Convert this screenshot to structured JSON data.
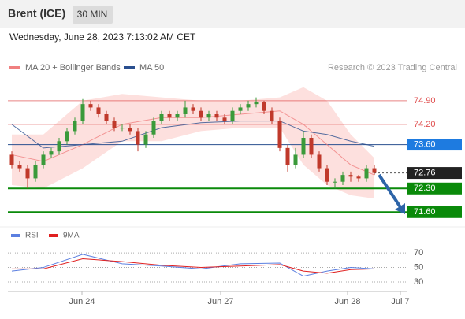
{
  "header": {
    "title": "Brent (ICE)",
    "interval": "30 MIN",
    "timestamp": "Wednesday, June 28, 2023 7:13:02 AM CET"
  },
  "chart_data": {
    "type": "candlestick",
    "legend": [
      {
        "name": "MA 20 + Bollinger Bands",
        "color": "#f08080"
      },
      {
        "name": "MA 50",
        "color": "#2a4f8f"
      }
    ],
    "credit": "Research © 2023 Trading Central",
    "xlim": [
      0,
      50
    ],
    "xticks": [
      {
        "value": 9.4,
        "label": "Jun 24"
      },
      {
        "value": 27,
        "label": "Jun 27"
      },
      {
        "value": 43.1,
        "label": "Jun 28"
      },
      {
        "value": 49.8,
        "label": "Jul 7"
      }
    ],
    "ylim": [
      71.28,
      75.55
    ],
    "up_color": "#3a9a3a",
    "down_color": "#c0392b",
    "open": [
      73.3,
      73.0,
      72.9,
      72.6,
      73.0,
      73.3,
      73.4,
      73.7,
      74.0,
      74.3,
      74.8,
      74.7,
      74.5,
      74.3,
      74.1,
      74.1,
      74.0,
      73.6,
      73.9,
      74.3,
      74.5,
      74.4,
      74.5,
      74.7,
      74.6,
      74.4,
      74.5,
      74.4,
      74.3,
      74.6,
      74.7,
      74.8,
      74.85,
      74.6,
      74.3,
      73.5,
      73.0,
      73.3,
      73.8,
      73.3,
      72.9,
      72.5,
      72.5,
      72.7,
      72.65,
      72.6,
      72.9
    ],
    "high": [
      73.4,
      73.1,
      73.0,
      73.1,
      73.4,
      73.5,
      73.8,
      74.1,
      74.4,
      74.95,
      74.9,
      74.8,
      74.6,
      74.4,
      74.2,
      74.2,
      74.1,
      74.0,
      74.4,
      74.6,
      74.6,
      74.6,
      74.9,
      74.8,
      74.7,
      74.6,
      74.6,
      74.5,
      74.7,
      74.8,
      74.9,
      75.0,
      74.9,
      74.7,
      74.4,
      73.6,
      73.5,
      74.0,
      73.9,
      73.4,
      73.0,
      72.6,
      72.8,
      72.8,
      72.7,
      73.0,
      73.0
    ],
    "low": [
      72.9,
      72.8,
      72.3,
      72.5,
      72.9,
      73.2,
      73.3,
      73.6,
      73.9,
      74.2,
      74.6,
      74.4,
      74.2,
      74.0,
      74.0,
      73.9,
      73.4,
      73.5,
      73.8,
      74.2,
      74.3,
      74.3,
      74.4,
      74.5,
      74.3,
      74.3,
      74.3,
      74.2,
      74.2,
      74.5,
      74.6,
      74.7,
      74.5,
      74.2,
      73.4,
      72.8,
      72.9,
      73.2,
      73.2,
      72.8,
      72.4,
      72.3,
      72.4,
      72.5,
      72.5,
      72.5,
      72.7
    ],
    "close": [
      73.0,
      72.9,
      72.6,
      73.0,
      73.3,
      73.4,
      73.7,
      74.0,
      74.3,
      74.8,
      74.7,
      74.5,
      74.3,
      74.1,
      74.1,
      74.0,
      73.6,
      73.9,
      74.3,
      74.5,
      74.4,
      74.5,
      74.7,
      74.6,
      74.4,
      74.5,
      74.4,
      74.3,
      74.6,
      74.7,
      74.8,
      74.85,
      74.6,
      74.3,
      73.5,
      73.0,
      73.3,
      73.8,
      73.3,
      72.9,
      72.5,
      72.5,
      72.7,
      72.65,
      72.6,
      72.9,
      72.76
    ],
    "indicator_x": [
      0,
      4,
      9,
      14,
      19,
      24,
      29,
      34,
      37,
      40,
      43,
      46
    ],
    "band_upper": [
      73.9,
      73.9,
      74.9,
      75.1,
      75.0,
      74.9,
      74.9,
      75.0,
      75.3,
      74.9,
      73.9,
      73.2
    ],
    "band_lower": [
      72.4,
      72.3,
      72.9,
      73.7,
      73.7,
      74.0,
      74.1,
      74.1,
      73.0,
      72.4,
      72.1,
      72.0
    ],
    "band_color": "#fde0de",
    "ma20": [
      73.3,
      73.1,
      73.6,
      74.2,
      74.4,
      74.4,
      74.5,
      74.6,
      74.2,
      73.6,
      73.0,
      72.7
    ],
    "ma50": [
      74.2,
      73.5,
      73.6,
      73.7,
      74.1,
      74.25,
      74.3,
      74.3,
      74.0,
      73.9,
      73.7,
      73.55
    ],
    "levels": [
      {
        "value": 74.9,
        "label": "74.90",
        "color": "#e05050"
      },
      {
        "value": 74.2,
        "label": "74.20",
        "color": "#e05050"
      },
      {
        "value": 73.6,
        "label": "73.60",
        "color": "#2a4f8f",
        "badge": "#1e7be0"
      },
      {
        "value": 72.76,
        "label": "72.76",
        "color": "#555555",
        "badge": "#222222",
        "dashed": true
      },
      {
        "value": 72.3,
        "label": "72.30",
        "color": "#0a8a0a",
        "badge": "#0a8a0a"
      },
      {
        "value": 71.6,
        "label": "71.60",
        "color": "#0a8a0a",
        "badge": "#0a8a0a"
      }
    ],
    "rsi": {
      "legend": [
        {
          "name": "RSI",
          "color": "#5b7fe0"
        },
        {
          "name": "9MA",
          "color": "#e02020"
        }
      ],
      "ylim": [
        17,
        82
      ],
      "yticks": [
        70,
        50,
        30
      ],
      "rsi": [
        45,
        50,
        68,
        55,
        52,
        48,
        55,
        56,
        38,
        45,
        50,
        48
      ],
      "ma9": [
        48,
        48,
        62,
        58,
        53,
        50,
        52,
        54,
        45,
        42,
        47,
        48
      ]
    }
  }
}
